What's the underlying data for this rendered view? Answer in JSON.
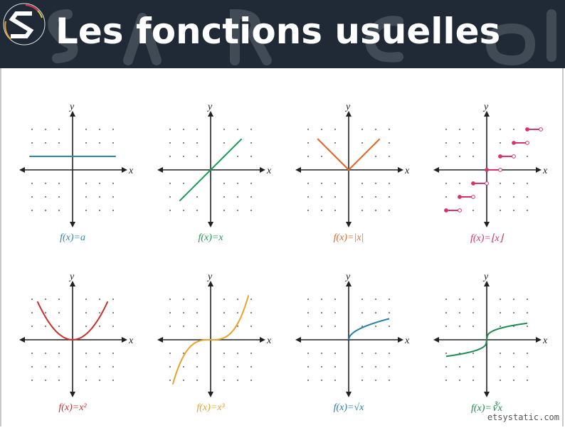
{
  "header": {
    "title": "Les fonctions usuelles",
    "background": "#1f2a36",
    "logo_icon": "s-logo-icon"
  },
  "axes": {
    "x_label": "x",
    "y_label": "y"
  },
  "graphs": [
    {
      "label": "f(x)=a",
      "color": "#2e86a8",
      "type": "constant"
    },
    {
      "label": "f(x)=x",
      "color": "#1e9a5a",
      "type": "identity"
    },
    {
      "label": "f(x)=|x|",
      "color": "#e06a2c",
      "type": "absolute"
    },
    {
      "label": "f(x)=⌊x⌋",
      "color": "#d6336c",
      "type": "floor"
    },
    {
      "label": "f(x)=x²",
      "color": "#c9302c",
      "type": "square"
    },
    {
      "label": "f(x)=x³",
      "color": "#e8a32a",
      "type": "cube"
    },
    {
      "label": "f(x)=√x",
      "color": "#2480a8",
      "type": "sqrt"
    },
    {
      "label": "f(x)=∛x",
      "color": "#1e8a50",
      "type": "cbrt"
    }
  ],
  "footer": {
    "credit": "etsystatic.com"
  },
  "chart_data": {
    "type": "line",
    "title": "Les fonctions usuelles",
    "xlabel": "x",
    "ylabel": "y",
    "xlim": [
      -3,
      3
    ],
    "ylim": [
      -3,
      3
    ],
    "grid": "dots",
    "series": [
      {
        "name": "f(x)=a",
        "x": [
          -3,
          3
        ],
        "y": [
          1,
          1
        ]
      },
      {
        "name": "f(x)=x",
        "x": [
          -2.2,
          2.2
        ],
        "y": [
          -2.2,
          2.2
        ]
      },
      {
        "name": "f(x)=|x|",
        "x": [
          -2.2,
          0,
          2.2
        ],
        "y": [
          2.2,
          0,
          2.2
        ]
      },
      {
        "name": "f(x)=⌊x⌋",
        "steps": [
          [
            -3,
            -2,
            -3
          ],
          [
            -2,
            -1,
            -2
          ],
          [
            -1,
            0,
            -1
          ],
          [
            0,
            1,
            0
          ],
          [
            1,
            2,
            1
          ],
          [
            2,
            3,
            2
          ],
          [
            3,
            4,
            3
          ]
        ]
      },
      {
        "name": "f(x)=x²",
        "x": [
          -2.6,
          -2,
          -1,
          0,
          1,
          2,
          2.6
        ],
        "y": [
          2.7,
          2,
          1,
          0,
          1,
          2,
          2.7
        ]
      },
      {
        "name": "f(x)=x³",
        "x": [
          -2.7,
          -2,
          -1,
          0,
          1,
          2,
          2.7
        ],
        "y": [
          -2.8,
          -1.5,
          -0.2,
          0,
          0.2,
          1.5,
          2.8
        ]
      },
      {
        "name": "f(x)=√x",
        "x": [
          0,
          1,
          2,
          3
        ],
        "y": [
          0,
          0.8,
          1.2,
          1.5
        ]
      },
      {
        "name": "f(x)=∛x",
        "x": [
          -3,
          -1,
          0,
          1,
          3
        ],
        "y": [
          -1.2,
          -0.8,
          0,
          0.8,
          1.2
        ]
      }
    ]
  }
}
